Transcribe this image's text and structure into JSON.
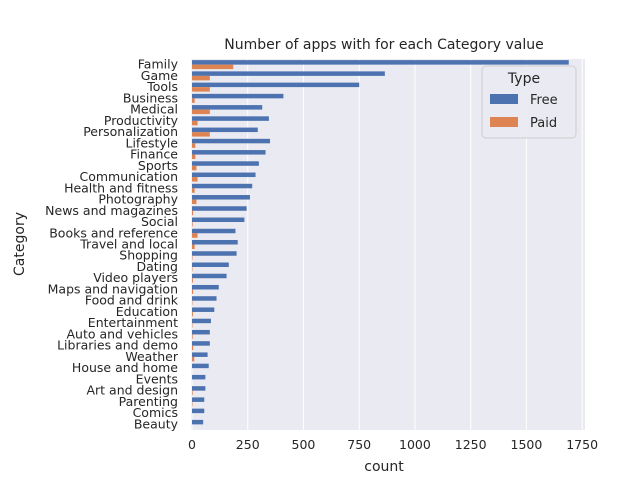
{
  "chart_data": {
    "type": "bar",
    "orientation": "horizontal",
    "title": "Number of apps with for each Category value",
    "xlabel": "count",
    "ylabel": "Category",
    "xlim": [
      0,
      1780
    ],
    "xticks": [
      0,
      250,
      500,
      750,
      1000,
      1250,
      1500,
      1750
    ],
    "grid": true,
    "legend_position": "top-right",
    "legend_title": "Type",
    "colors": {
      "background": "#eaeaf2",
      "grid": "#ffffff",
      "Free": "#4c72b0",
      "Paid": "#dd8452"
    },
    "categories": [
      "Family",
      "Game",
      "Tools",
      "Business",
      "Medical",
      "Productivity",
      "Personalization",
      "Lifestyle",
      "Finance",
      "Sports",
      "Communication",
      "Health and fitness",
      "Photography",
      "News and magazines",
      "Social",
      "Books and reference",
      "Travel and local",
      "Shopping",
      "Dating",
      "Video players",
      "Maps and navigation",
      "Food and drink",
      "Education",
      "Entertainment",
      "Auto and vehicles",
      "Libraries and demo",
      "Weather",
      "House and home",
      "Events",
      "Art and design",
      "Parenting",
      "Comics",
      "Beauty"
    ],
    "series": [
      {
        "name": "Free",
        "values": [
          1690,
          865,
          750,
          410,
          315,
          345,
          295,
          350,
          330,
          300,
          285,
          270,
          260,
          245,
          235,
          195,
          205,
          200,
          165,
          155,
          120,
          110,
          100,
          85,
          80,
          80,
          70,
          75,
          60,
          60,
          55,
          55,
          50
        ]
      },
      {
        "name": "Paid",
        "values": [
          185,
          80,
          80,
          12,
          80,
          25,
          80,
          15,
          15,
          20,
          25,
          12,
          20,
          5,
          3,
          25,
          12,
          2,
          2,
          4,
          5,
          2,
          4,
          2,
          3,
          5,
          10,
          0,
          0,
          3,
          2,
          0,
          0
        ]
      }
    ]
  }
}
